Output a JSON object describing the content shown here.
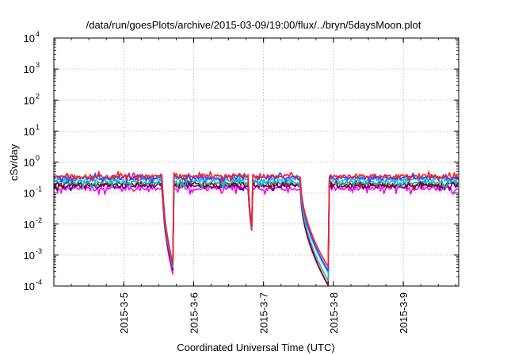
{
  "chart_data": {
    "type": "line",
    "title": "/data/run/goesPlots/archive/2015-03-09/19:00/flux/../bryn/5daysMoon.plot",
    "xlabel": "Coordinated Universal Time (UTC)",
    "ylabel": "cSv/day",
    "yscale": "log",
    "ylim": [
      0.0001,
      10000
    ],
    "xlim": [
      "2015-03-04T00:00",
      "2015-03-09T19:00"
    ],
    "y_ticks": [
      {
        "value": 0.0001,
        "base": "10",
        "exp": "-4"
      },
      {
        "value": 0.001,
        "base": "10",
        "exp": "-3"
      },
      {
        "value": 0.01,
        "base": "10",
        "exp": "-2"
      },
      {
        "value": 0.1,
        "base": "10",
        "exp": "-1"
      },
      {
        "value": 1,
        "base": "10",
        "exp": "0"
      },
      {
        "value": 10,
        "base": "10",
        "exp": "1"
      },
      {
        "value": 100,
        "base": "10",
        "exp": "2"
      },
      {
        "value": 1000,
        "base": "10",
        "exp": "3"
      },
      {
        "value": 10000,
        "base": "10",
        "exp": "4"
      }
    ],
    "x_ticks": [
      {
        "value": "2015-03-05T00:00",
        "label": "2015-3-5"
      },
      {
        "value": "2015-03-06T00:00",
        "label": "2015-3-6"
      },
      {
        "value": "2015-03-07T00:00",
        "label": "2015-3-7"
      },
      {
        "value": "2015-03-08T00:00",
        "label": "2015-3-8"
      },
      {
        "value": "2015-03-09T00:00",
        "label": "2015-3-9"
      }
    ],
    "grid": true,
    "legend": "none",
    "colors": [
      "#ff00ff",
      "#4b0082",
      "#8b0000",
      "#20b2aa",
      "#00bfff",
      "#3f3fff",
      "#ff2020"
    ],
    "baseline_levels": [
      0.14,
      0.17,
      0.19,
      0.22,
      0.27,
      0.31,
      0.35
    ],
    "dropouts": [
      {
        "start": "2015-03-05T13:20",
        "end": "2015-03-05T17:10",
        "min_values": [
          0.00018,
          0.00025,
          0.00025,
          0.0003,
          0.00035,
          0.00037,
          0.0004
        ]
      },
      {
        "start": "2015-03-06T18:50",
        "end": "2015-03-06T20:10",
        "min_values": [
          0.0045,
          0.0047,
          0.0048,
          0.005,
          0.0052,
          0.0053,
          0.0055
        ]
      },
      {
        "start": "2015-03-07T12:40",
        "end": "2015-03-07T22:20",
        "min_values": [
          0.0001,
          0.0001,
          0.0001,
          0.00014,
          0.00026,
          0.0003,
          0.0004
        ]
      }
    ]
  }
}
